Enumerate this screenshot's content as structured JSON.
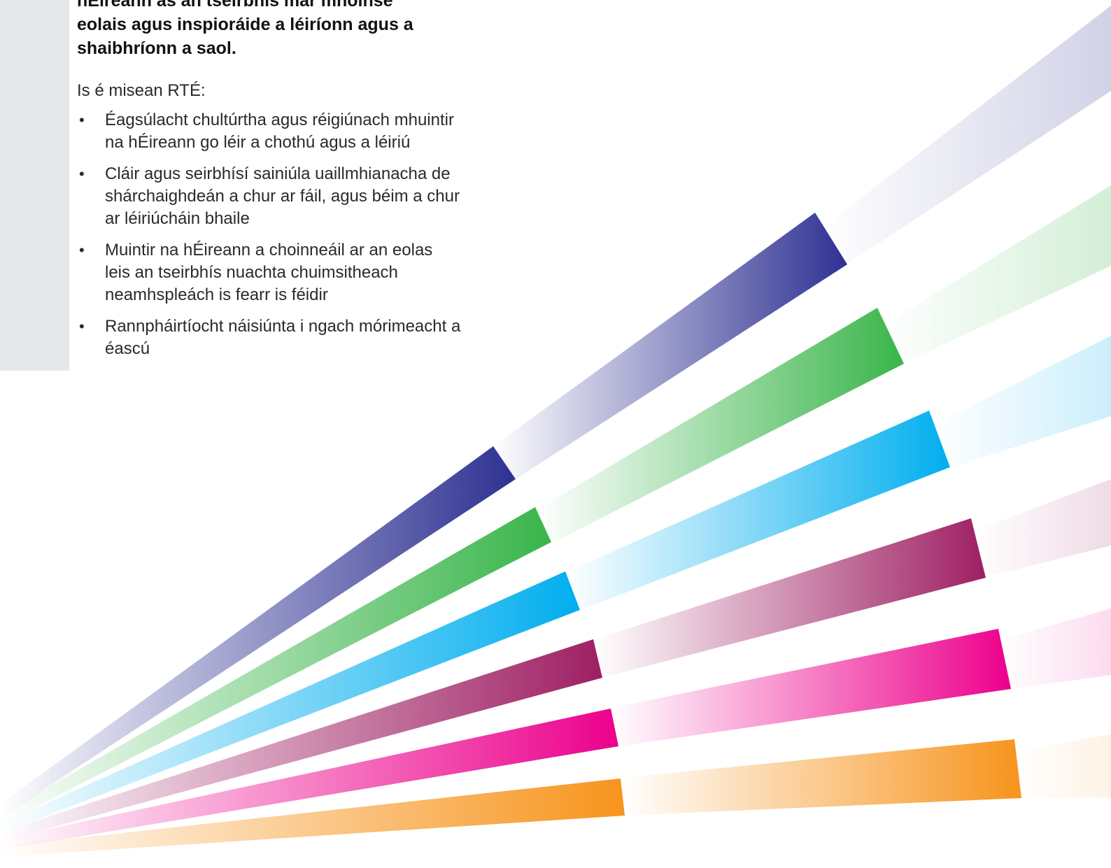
{
  "vision": {
    "lines": [
      "hÉireann as an tseirbhís mar mhoinse",
      "eolais agus inspioráide a léiríonn agus a",
      "shaibhríonn a saol."
    ]
  },
  "mission": {
    "intro": "Is é misean RTÉ:",
    "bullet_char": "•",
    "items": [
      {
        "lines": [
          "Éagsúlacht chultúrtha agus réigiúnach mhuintir",
          "na hÉireann go léir a chothú agus a léiriú"
        ]
      },
      {
        "lines": [
          "Cláir agus seirbhísí sainiúla uaillmhianacha de",
          "shárchaighdeán a chur ar fáil, agus béim a chur",
          "ar léiriúcháin bhaile"
        ]
      },
      {
        "lines": [
          "Muintir na hÉireann a choinneáil ar an eolas",
          "leis an tseirbhís nuachta chuimsitheach",
          "neamhspleách is fearr is féidir"
        ]
      },
      {
        "lines": [
          "Rannpháirtíocht náisiúnta i ngach mórimeacht a",
          "éascú"
        ]
      }
    ]
  },
  "graphic": {
    "beam_colors": [
      "#2e3192",
      "#39b54a",
      "#00aeef",
      "#9e1f63",
      "#ec008c",
      "#f7941d"
    ]
  }
}
